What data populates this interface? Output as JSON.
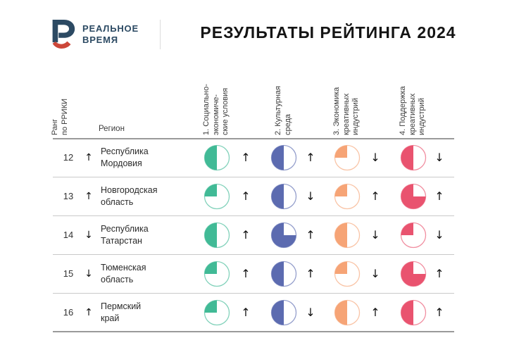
{
  "header": {
    "brand": {
      "name": "РЕАЛЬНОЕ\nВРЕМЯ",
      "navy": "#2c4a63",
      "red": "#cc4739"
    },
    "title": "РЕЗУЛЬТАТЫ РЕЙТИНГА 2024"
  },
  "table": {
    "rank_header": "Ранг\nпо РРИКИ",
    "region_header": "Регион",
    "columns": [
      {
        "label": "1. Социально-\nэкономиче-\nские условия",
        "color": "#41ba96"
      },
      {
        "label": "2. Культурная\nсреда",
        "color": "#5c6bb0"
      },
      {
        "label": "3. Экономика\nкреативных\nиндустрий",
        "color": "#f6a476"
      },
      {
        "label": "4. Поддержка\nкреативных\nиндустрий",
        "color": "#e9536f"
      }
    ],
    "trend_glyphs": {
      "up": "↑",
      "down": "↓"
    }
  },
  "chart_data": {
    "type": "table",
    "title": "РЕЗУЛЬТАТЫ РЕЙТИНГА 2024",
    "columns": [
      "Ранг по РРИКИ",
      "Регион",
      "1. Социально-экономические условия",
      "2. Культурная среда",
      "3. Экономика креативных индустрий",
      "4. Поддержка креативных индустрий"
    ],
    "pie_fill_convention": "fraction filled counterclockwise from 12 o'clock",
    "rows": [
      {
        "rank": "12",
        "rank_trend": "up",
        "region": "Республика\nМордовия",
        "scores": [
          {
            "fill": 0.5,
            "trend": "up"
          },
          {
            "fill": 0.5,
            "trend": "up"
          },
          {
            "fill": 0.25,
            "trend": "down"
          },
          {
            "fill": 0.5,
            "trend": "down"
          }
        ]
      },
      {
        "rank": "13",
        "rank_trend": "up",
        "region": "Новгородская\nобласть",
        "scores": [
          {
            "fill": 0.25,
            "trend": "up"
          },
          {
            "fill": 0.5,
            "trend": "down"
          },
          {
            "fill": 0.25,
            "trend": "up"
          },
          {
            "fill": 0.75,
            "trend": "up"
          }
        ]
      },
      {
        "rank": "14",
        "rank_trend": "down",
        "region": "Республика\nТатарстан",
        "scores": [
          {
            "fill": 0.5,
            "trend": "up"
          },
          {
            "fill": 0.75,
            "trend": "up"
          },
          {
            "fill": 0.5,
            "trend": "down"
          },
          {
            "fill": 0.25,
            "trend": "down"
          }
        ]
      },
      {
        "rank": "15",
        "rank_trend": "down",
        "region": "Тюменская\nобласть",
        "scores": [
          {
            "fill": 0.25,
            "trend": "up"
          },
          {
            "fill": 0.5,
            "trend": "up"
          },
          {
            "fill": 0.25,
            "trend": "down"
          },
          {
            "fill": 0.75,
            "trend": "up"
          }
        ]
      },
      {
        "rank": "16",
        "rank_trend": "up",
        "region": "Пермский\nкрай",
        "scores": [
          {
            "fill": 0.25,
            "trend": "up"
          },
          {
            "fill": 0.5,
            "trend": "down"
          },
          {
            "fill": 0.5,
            "trend": "up"
          },
          {
            "fill": 0.5,
            "trend": "up"
          }
        ]
      }
    ]
  }
}
